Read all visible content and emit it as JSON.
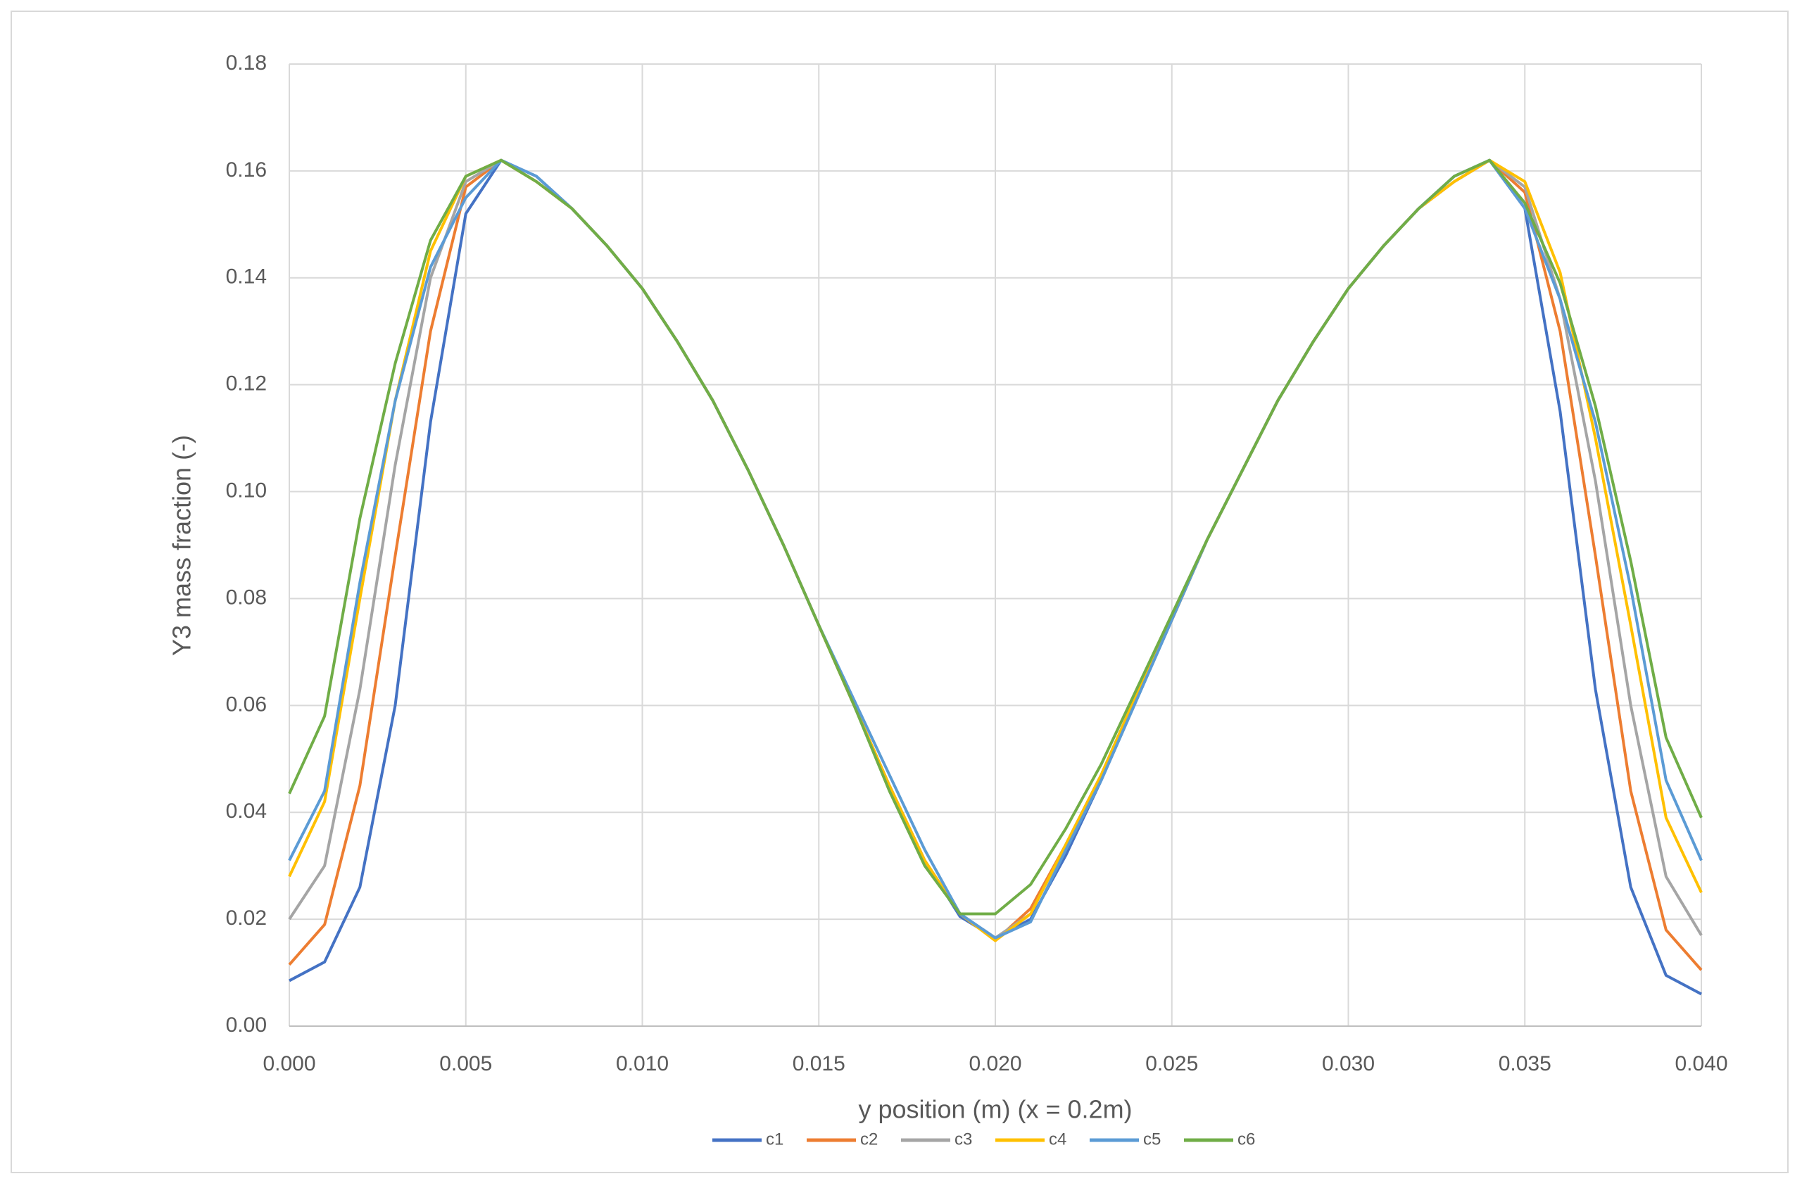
{
  "chart_data": {
    "type": "line",
    "x_label": "y position (m) (x = 0.2m)",
    "y_label": "Y3 mass fraction (-)",
    "x": [
      0,
      0.001,
      0.002,
      0.003,
      0.004,
      0.005,
      0.006,
      0.007,
      0.008,
      0.009,
      0.01,
      0.011,
      0.012,
      0.013,
      0.014,
      0.015,
      0.016,
      0.017,
      0.018,
      0.019,
      0.02,
      0.021,
      0.022,
      0.023,
      0.024,
      0.025,
      0.026,
      0.027,
      0.028,
      0.029,
      0.03,
      0.031,
      0.032,
      0.033,
      0.034,
      0.035,
      0.036,
      0.037,
      0.038,
      0.039,
      0.04
    ],
    "series": [
      {
        "name": "c1",
        "color": "#4472c4",
        "values": [
          0.0085,
          0.012,
          0.026,
          0.06,
          0.113,
          0.152,
          0.162,
          0.159,
          0.153,
          0.146,
          0.138,
          0.128,
          0.117,
          0.104,
          0.09,
          0.075,
          0.06,
          0.045,
          0.031,
          0.0205,
          0.0165,
          0.02,
          0.032,
          0.046,
          0.061,
          0.076,
          0.091,
          0.104,
          0.117,
          0.128,
          0.138,
          0.146,
          0.153,
          0.159,
          0.162,
          0.153,
          0.115,
          0.063,
          0.026,
          0.0095,
          0.006
        ]
      },
      {
        "name": "c2",
        "color": "#ed7d31",
        "values": [
          0.0115,
          0.019,
          0.045,
          0.088,
          0.13,
          0.157,
          0.162,
          0.158,
          0.153,
          0.146,
          0.138,
          0.128,
          0.117,
          0.104,
          0.09,
          0.075,
          0.06,
          0.045,
          0.031,
          0.021,
          0.016,
          0.022,
          0.034,
          0.047,
          0.062,
          0.076,
          0.091,
          0.104,
          0.117,
          0.128,
          0.138,
          0.146,
          0.153,
          0.158,
          0.162,
          0.156,
          0.13,
          0.088,
          0.044,
          0.018,
          0.0105
        ]
      },
      {
        "name": "c3",
        "color": "#a5a5a5",
        "values": [
          0.02,
          0.03,
          0.063,
          0.105,
          0.14,
          0.158,
          0.162,
          0.158,
          0.153,
          0.146,
          0.138,
          0.128,
          0.117,
          0.104,
          0.09,
          0.075,
          0.06,
          0.045,
          0.031,
          0.021,
          0.0165,
          0.021,
          0.034,
          0.047,
          0.062,
          0.076,
          0.091,
          0.104,
          0.117,
          0.128,
          0.138,
          0.146,
          0.153,
          0.158,
          0.162,
          0.157,
          0.136,
          0.102,
          0.06,
          0.028,
          0.017
        ]
      },
      {
        "name": "c4",
        "color": "#ffc000",
        "values": [
          0.028,
          0.042,
          0.08,
          0.117,
          0.145,
          0.159,
          0.162,
          0.158,
          0.153,
          0.146,
          0.138,
          0.128,
          0.117,
          0.104,
          0.09,
          0.075,
          0.06,
          0.045,
          0.031,
          0.021,
          0.016,
          0.021,
          0.034,
          0.047,
          0.062,
          0.076,
          0.091,
          0.104,
          0.117,
          0.128,
          0.138,
          0.146,
          0.153,
          0.158,
          0.162,
          0.158,
          0.141,
          0.11,
          0.075,
          0.039,
          0.025
        ]
      },
      {
        "name": "c5",
        "color": "#5b9bd5",
        "values": [
          0.031,
          0.044,
          0.083,
          0.117,
          0.142,
          0.155,
          0.162,
          0.159,
          0.153,
          0.146,
          0.138,
          0.128,
          0.117,
          0.104,
          0.09,
          0.075,
          0.061,
          0.047,
          0.033,
          0.021,
          0.0165,
          0.0195,
          0.033,
          0.046,
          0.061,
          0.076,
          0.091,
          0.104,
          0.117,
          0.128,
          0.138,
          0.146,
          0.153,
          0.159,
          0.162,
          0.153,
          0.136,
          0.113,
          0.082,
          0.046,
          0.031
        ]
      },
      {
        "name": "c6",
        "color": "#70ad47",
        "values": [
          0.0435,
          0.058,
          0.095,
          0.124,
          0.147,
          0.159,
          0.162,
          0.158,
          0.153,
          0.146,
          0.138,
          0.128,
          0.117,
          0.104,
          0.09,
          0.075,
          0.06,
          0.044,
          0.03,
          0.021,
          0.021,
          0.0265,
          0.037,
          0.049,
          0.063,
          0.077,
          0.091,
          0.104,
          0.117,
          0.128,
          0.138,
          0.146,
          0.153,
          0.159,
          0.162,
          0.154,
          0.139,
          0.116,
          0.087,
          0.054,
          0.039
        ]
      }
    ],
    "xlim": [
      0,
      0.04
    ],
    "xticks": [
      {
        "value": 0,
        "label": "0.000"
      },
      {
        "value": 0.005,
        "label": "0.005"
      },
      {
        "value": 0.01,
        "label": "0.010"
      },
      {
        "value": 0.015,
        "label": "0.015"
      },
      {
        "value": 0.02,
        "label": "0.020"
      },
      {
        "value": 0.025,
        "label": "0.025"
      },
      {
        "value": 0.03,
        "label": "0.030"
      },
      {
        "value": 0.035,
        "label": "0.035"
      },
      {
        "value": 0.04,
        "label": "0.040"
      }
    ],
    "ylim": [
      0,
      0.18
    ],
    "yticks": [
      {
        "value": 0,
        "label": "0.00"
      },
      {
        "value": 0.02,
        "label": "0.02"
      },
      {
        "value": 0.04,
        "label": "0.04"
      },
      {
        "value": 0.06,
        "label": "0.06"
      },
      {
        "value": 0.08,
        "label": "0.08"
      },
      {
        "value": 0.1,
        "label": "0.10"
      },
      {
        "value": 0.12,
        "label": "0.12"
      },
      {
        "value": 0.14,
        "label": "0.14"
      },
      {
        "value": 0.16,
        "label": "0.16"
      },
      {
        "value": 0.18,
        "label": "0.18"
      }
    ],
    "grid": true,
    "legend": "bottom"
  }
}
